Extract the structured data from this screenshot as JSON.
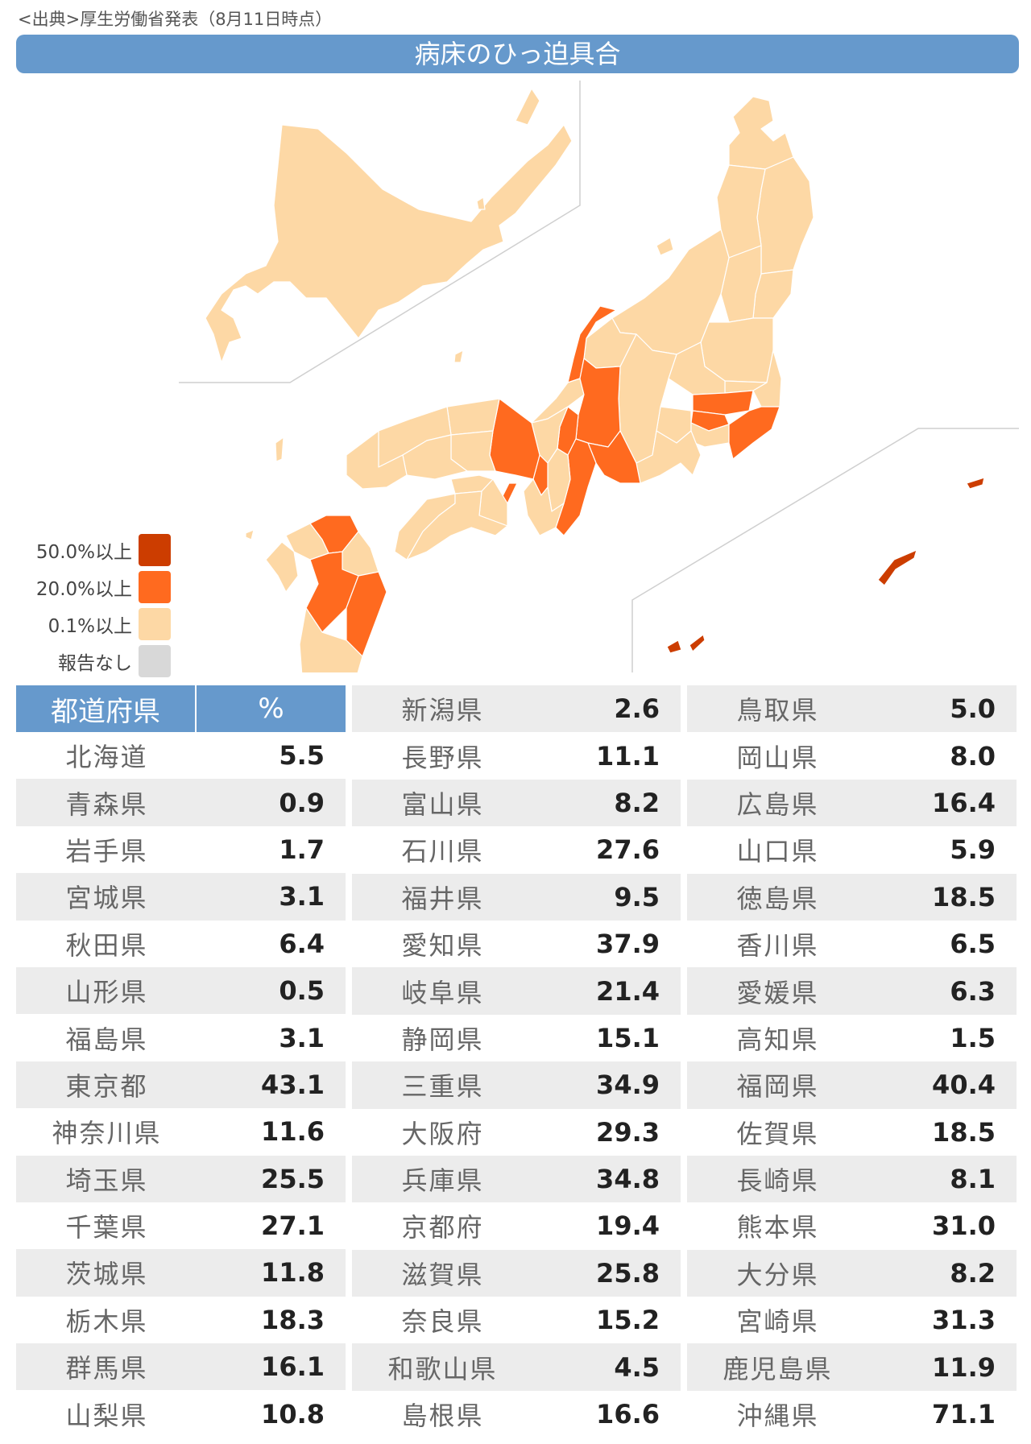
{
  "source": "<出典>厚生労働省発表（8月11日時点）",
  "title": "病床のひっ迫具合",
  "colors": {
    "title_bg": "#6699cc",
    "c50": "#cc3d00",
    "c20": "#ff6a1f",
    "c01": "#fdd8a5",
    "none": "#d8d8d8"
  },
  "legend": [
    {
      "label": "50.0%以上",
      "color": "#cc3d00"
    },
    {
      "label": "20.0%以上",
      "color": "#ff6a1f"
    },
    {
      "label": "0.1%以上",
      "color": "#fdd8a5"
    },
    {
      "label": "報告なし",
      "color": "#d8d8d8"
    }
  ],
  "table": {
    "header": {
      "name": "都道府県",
      "value": "%"
    },
    "columns": [
      [
        {
          "name": "北海道",
          "value": "5.5"
        },
        {
          "name": "青森県",
          "value": "0.9"
        },
        {
          "name": "岩手県",
          "value": "1.7"
        },
        {
          "name": "宮城県",
          "value": "3.1"
        },
        {
          "name": "秋田県",
          "value": "6.4"
        },
        {
          "name": "山形県",
          "value": "0.5"
        },
        {
          "name": "福島県",
          "value": "3.1"
        },
        {
          "name": "東京都",
          "value": "43.1"
        },
        {
          "name": "神奈川県",
          "value": "11.6"
        },
        {
          "name": "埼玉県",
          "value": "25.5"
        },
        {
          "name": "千葉県",
          "value": "27.1"
        },
        {
          "name": "茨城県",
          "value": "11.8"
        },
        {
          "name": "栃木県",
          "value": "18.3"
        },
        {
          "name": "群馬県",
          "value": "16.1"
        },
        {
          "name": "山梨県",
          "value": "10.8"
        }
      ],
      [
        {
          "name": "新潟県",
          "value": "2.6"
        },
        {
          "name": "長野県",
          "value": "11.1"
        },
        {
          "name": "富山県",
          "value": "8.2"
        },
        {
          "name": "石川県",
          "value": "27.6"
        },
        {
          "name": "福井県",
          "value": "9.5"
        },
        {
          "name": "愛知県",
          "value": "37.9"
        },
        {
          "name": "岐阜県",
          "value": "21.4"
        },
        {
          "name": "静岡県",
          "value": "15.1"
        },
        {
          "name": "三重県",
          "value": "34.9"
        },
        {
          "name": "大阪府",
          "value": "29.3"
        },
        {
          "name": "兵庫県",
          "value": "34.8"
        },
        {
          "name": "京都府",
          "value": "19.4"
        },
        {
          "name": "滋賀県",
          "value": "25.8"
        },
        {
          "name": "奈良県",
          "value": "15.2"
        },
        {
          "name": "和歌山県",
          "value": "4.5"
        },
        {
          "name": "島根県",
          "value": "16.6"
        }
      ],
      [
        {
          "name": "鳥取県",
          "value": "5.0"
        },
        {
          "name": "岡山県",
          "value": "8.0"
        },
        {
          "name": "広島県",
          "value": "16.4"
        },
        {
          "name": "山口県",
          "value": "5.9"
        },
        {
          "name": "徳島県",
          "value": "18.5"
        },
        {
          "name": "香川県",
          "value": "6.5"
        },
        {
          "name": "愛媛県",
          "value": "6.3"
        },
        {
          "name": "高知県",
          "value": "1.5"
        },
        {
          "name": "福岡県",
          "value": "40.4"
        },
        {
          "name": "佐賀県",
          "value": "18.5"
        },
        {
          "name": "長崎県",
          "value": "8.1"
        },
        {
          "name": "熊本県",
          "value": "31.0"
        },
        {
          "name": "大分県",
          "value": "8.2"
        },
        {
          "name": "宮崎県",
          "value": "31.3"
        },
        {
          "name": "鹿児島県",
          "value": "11.9"
        },
        {
          "name": "沖縄県",
          "value": "71.1"
        }
      ]
    ]
  }
}
